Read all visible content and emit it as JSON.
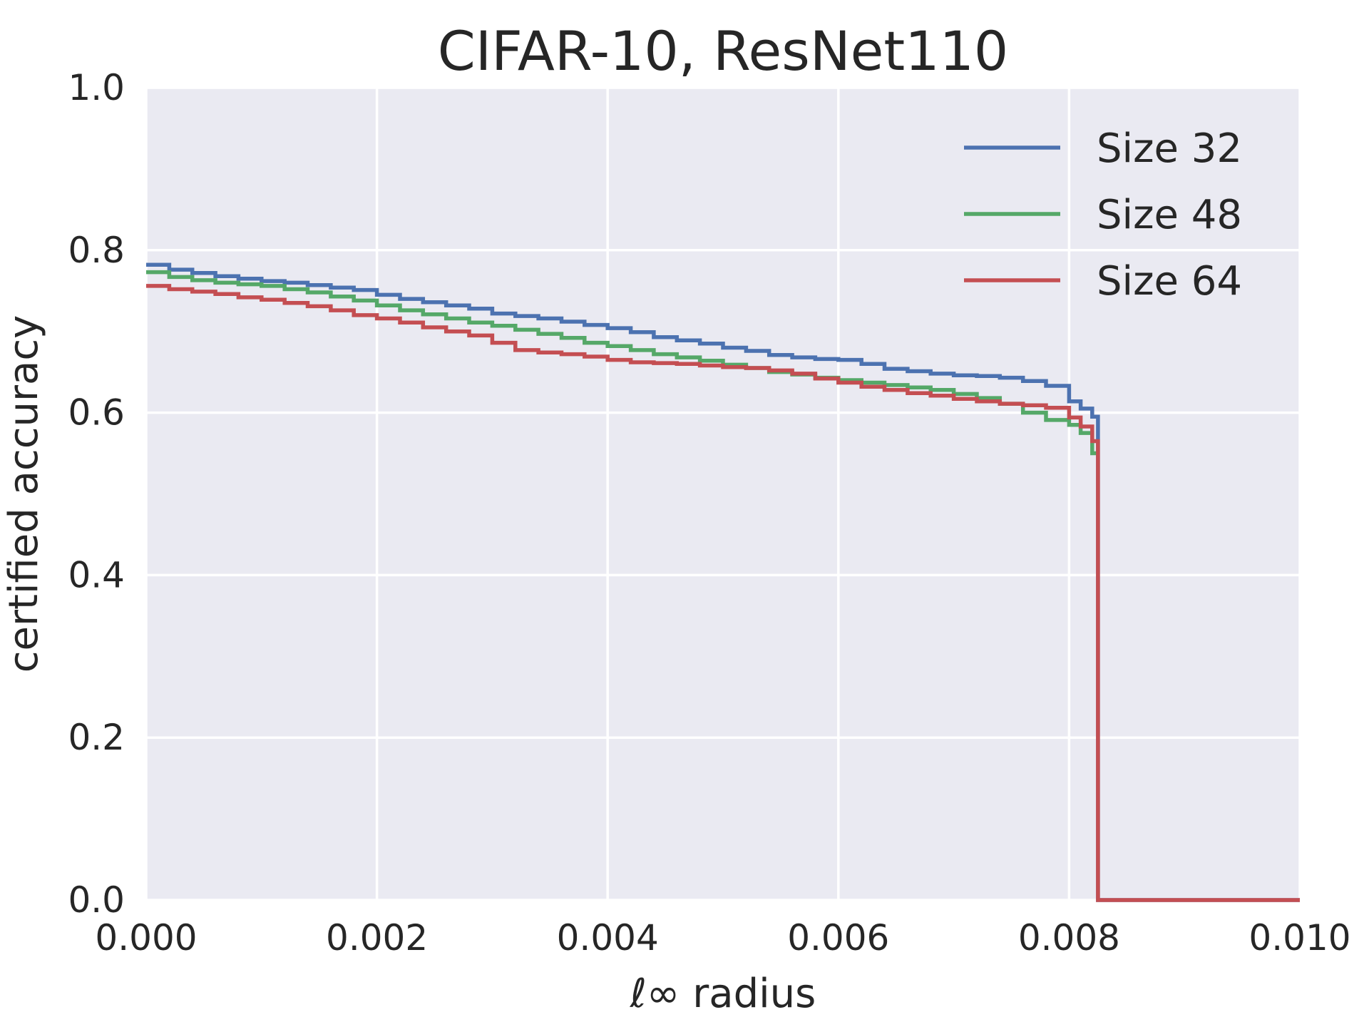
{
  "chart_data": {
    "type": "line",
    "title": "CIFAR-10, ResNet110",
    "xlabel": "ℓ∞ radius",
    "ylabel": "certified accuracy",
    "xlim": [
      0.0,
      0.01
    ],
    "ylim": [
      0.0,
      1.0
    ],
    "xticks": [
      0.0,
      0.002,
      0.004,
      0.006,
      0.008,
      0.01
    ],
    "xtick_labels": [
      "0.000",
      "0.002",
      "0.004",
      "0.006",
      "0.008",
      "0.010"
    ],
    "yticks": [
      0.0,
      0.2,
      0.4,
      0.6,
      0.8,
      1.0
    ],
    "ytick_labels": [
      "0.0",
      "0.2",
      "0.4",
      "0.6",
      "0.8",
      "1.0"
    ],
    "grid": true,
    "legend_position": "top-right",
    "background": "#EAEAF2",
    "series": [
      {
        "name": "Size 32",
        "color": "#4C72B0",
        "x": [
          0.0,
          0.0002,
          0.0004,
          0.0006,
          0.0008,
          0.001,
          0.0012,
          0.0014,
          0.0016,
          0.0018,
          0.002,
          0.0022,
          0.0024,
          0.0026,
          0.0028,
          0.003,
          0.0032,
          0.0034,
          0.0036,
          0.0038,
          0.004,
          0.0042,
          0.0044,
          0.0046,
          0.0048,
          0.005,
          0.0052,
          0.0054,
          0.0056,
          0.0058,
          0.006,
          0.0062,
          0.0064,
          0.0066,
          0.0068,
          0.007,
          0.0072,
          0.0074,
          0.0076,
          0.0078,
          0.008,
          0.0081,
          0.0082,
          0.00825,
          0.00825,
          0.01
        ],
        "y": [
          0.782,
          0.776,
          0.772,
          0.768,
          0.765,
          0.762,
          0.76,
          0.757,
          0.754,
          0.751,
          0.745,
          0.74,
          0.736,
          0.732,
          0.728,
          0.722,
          0.719,
          0.716,
          0.712,
          0.708,
          0.704,
          0.699,
          0.693,
          0.689,
          0.685,
          0.68,
          0.676,
          0.671,
          0.668,
          0.666,
          0.665,
          0.66,
          0.654,
          0.651,
          0.648,
          0.646,
          0.645,
          0.643,
          0.639,
          0.633,
          0.614,
          0.605,
          0.595,
          0.592,
          0.0,
          0.0
        ]
      },
      {
        "name": "Size 48",
        "color": "#55A868",
        "x": [
          0.0,
          0.0002,
          0.0004,
          0.0006,
          0.0008,
          0.001,
          0.0012,
          0.0014,
          0.0016,
          0.0018,
          0.002,
          0.0022,
          0.0024,
          0.0026,
          0.0028,
          0.003,
          0.0032,
          0.0034,
          0.0036,
          0.0038,
          0.004,
          0.0042,
          0.0044,
          0.0046,
          0.0048,
          0.005,
          0.0052,
          0.0054,
          0.0056,
          0.0058,
          0.006,
          0.0062,
          0.0064,
          0.0066,
          0.0068,
          0.007,
          0.0072,
          0.0074,
          0.0076,
          0.0078,
          0.008,
          0.0081,
          0.0082,
          0.00825
        ],
        "y": [
          0.773,
          0.767,
          0.763,
          0.76,
          0.758,
          0.756,
          0.752,
          0.748,
          0.743,
          0.738,
          0.732,
          0.726,
          0.721,
          0.716,
          0.711,
          0.707,
          0.702,
          0.697,
          0.692,
          0.686,
          0.682,
          0.677,
          0.672,
          0.668,
          0.664,
          0.659,
          0.655,
          0.65,
          0.647,
          0.643,
          0.64,
          0.637,
          0.634,
          0.631,
          0.628,
          0.623,
          0.618,
          0.611,
          0.6,
          0.591,
          0.585,
          0.575,
          0.55,
          0.55
        ]
      },
      {
        "name": "Size 64",
        "color": "#C44E52",
        "x": [
          0.0,
          0.0002,
          0.0004,
          0.0006,
          0.0008,
          0.001,
          0.0012,
          0.0014,
          0.0016,
          0.0018,
          0.002,
          0.0022,
          0.0024,
          0.0026,
          0.0028,
          0.003,
          0.0032,
          0.0034,
          0.0036,
          0.0038,
          0.004,
          0.0042,
          0.0044,
          0.0046,
          0.0048,
          0.005,
          0.0052,
          0.0054,
          0.0056,
          0.0058,
          0.006,
          0.0062,
          0.0064,
          0.0066,
          0.0068,
          0.007,
          0.0072,
          0.0074,
          0.0076,
          0.0078,
          0.008,
          0.0081,
          0.0082,
          0.00825,
          0.00825,
          0.01
        ],
        "y": [
          0.756,
          0.752,
          0.749,
          0.746,
          0.742,
          0.739,
          0.735,
          0.731,
          0.726,
          0.72,
          0.716,
          0.711,
          0.705,
          0.7,
          0.695,
          0.686,
          0.677,
          0.674,
          0.672,
          0.669,
          0.665,
          0.662,
          0.661,
          0.66,
          0.658,
          0.656,
          0.655,
          0.652,
          0.648,
          0.642,
          0.637,
          0.632,
          0.628,
          0.624,
          0.621,
          0.617,
          0.614,
          0.611,
          0.609,
          0.606,
          0.594,
          0.583,
          0.565,
          0.555,
          0.0,
          0.0
        ]
      }
    ]
  }
}
